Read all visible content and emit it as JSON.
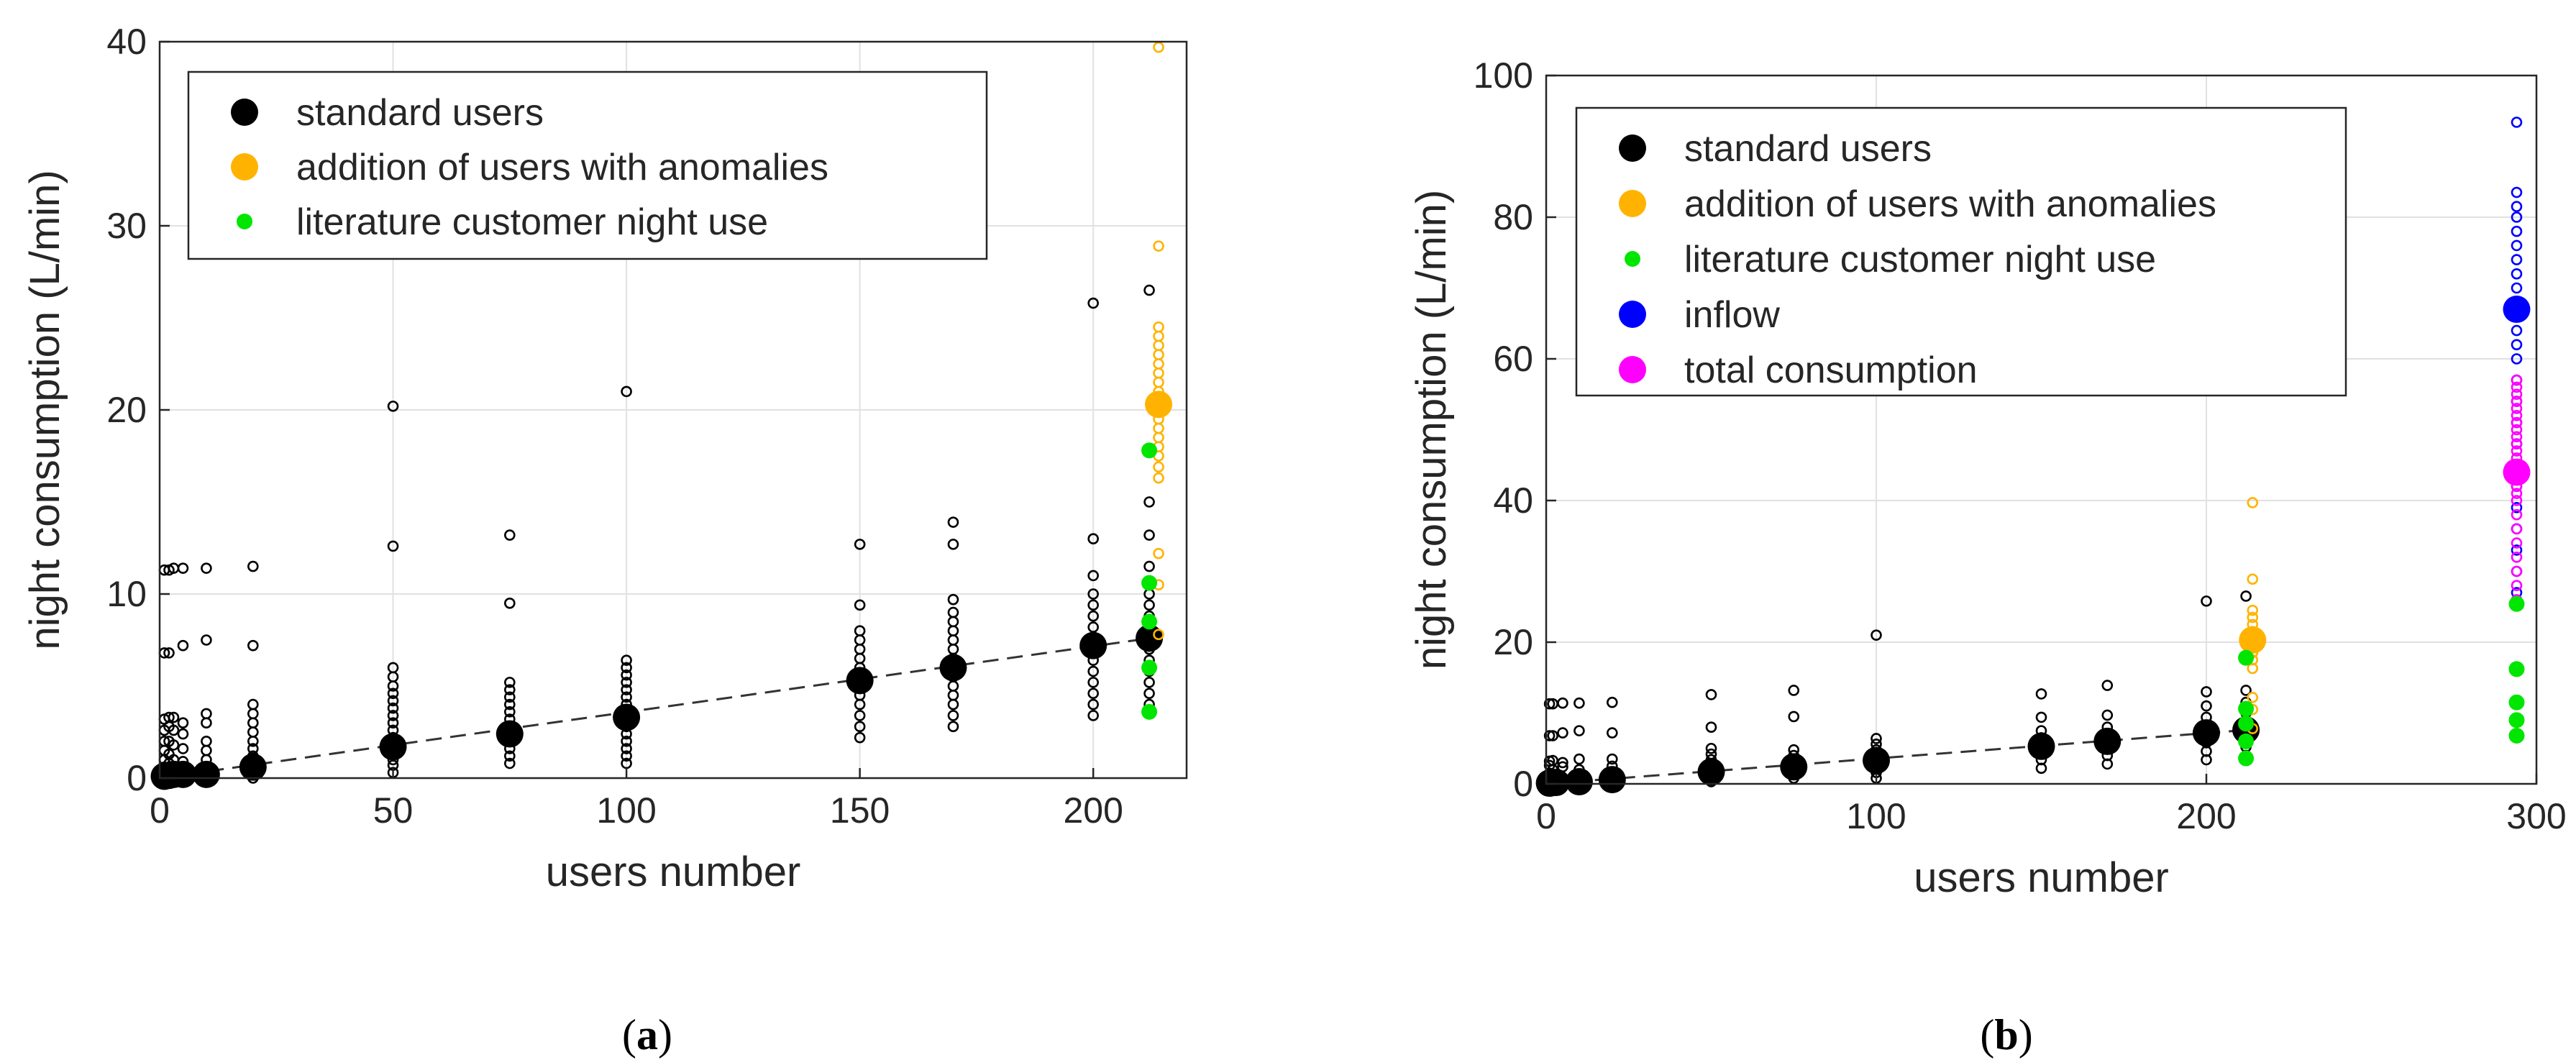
{
  "chart_data": [
    {
      "type": "scatter",
      "panel_label": "a",
      "xlabel": "users number",
      "ylabel": "night consumption (L/min)",
      "xlim": [
        0,
        220
      ],
      "ylim": [
        0,
        40
      ],
      "xticks": [
        0,
        50,
        100,
        150,
        200
      ],
      "yticks": [
        0,
        10,
        20,
        30,
        40
      ],
      "grid": true,
      "legend_position": "top-left",
      "legend": [
        {
          "label": "standard users",
          "color": "#000000",
          "marker": "large-dot"
        },
        {
          "label": "addition of users with anomalies",
          "color": "#FFB300",
          "marker": "large-dot"
        },
        {
          "label": "literature customer night use",
          "color": "#00E600",
          "marker": "small-dot"
        }
      ],
      "trend_line": {
        "style": "dashed",
        "from": [
          0,
          0
        ],
        "to": [
          215,
          7.7
        ]
      },
      "series": [
        {
          "name": "standard users (individual)",
          "marker": "open-circle",
          "color": "#000000",
          "groups": [
            {
              "x": 1,
              "y": [
                0,
                0.3,
                0.6,
                1,
                1.5,
                2,
                2.6,
                3.2,
                6.8,
                11.3
              ]
            },
            {
              "x": 2,
              "y": [
                0,
                0.4,
                0.8,
                1.3,
                2,
                2.8,
                3.3,
                6.8,
                11.3
              ]
            },
            {
              "x": 3,
              "y": [
                0,
                0.5,
                1,
                1.8,
                2.6,
                3.3,
                11.4
              ]
            },
            {
              "x": 5,
              "y": [
                0,
                0.4,
                0.9,
                1.6,
                2.4,
                3,
                7.2,
                11.4
              ]
            },
            {
              "x": 10,
              "y": [
                0,
                0.5,
                1,
                1.5,
                2,
                3,
                3.5,
                7.5,
                11.4
              ]
            },
            {
              "x": 20,
              "y": [
                0,
                0.4,
                0.8,
                1.2,
                1.6,
                2,
                2.5,
                3,
                3.5,
                4,
                7.2,
                11.5
              ]
            },
            {
              "x": 50,
              "y": [
                0.3,
                0.7,
                1,
                1.4,
                1.8,
                2.2,
                2.6,
                3,
                3.4,
                3.8,
                4.2,
                4.6,
                5,
                5.5,
                6,
                12.6,
                20.2
              ]
            },
            {
              "x": 75,
              "y": [
                0.8,
                1.2,
                1.6,
                2,
                2.4,
                2.8,
                3.2,
                3.6,
                4,
                4.4,
                4.8,
                5.2,
                9.5,
                13.2
              ]
            },
            {
              "x": 100,
              "y": [
                0.8,
                1.2,
                1.6,
                2,
                2.4,
                2.8,
                3.2,
                3.6,
                4,
                4.4,
                4.8,
                5.2,
                5.6,
                6,
                6.4,
                21
              ]
            },
            {
              "x": 150,
              "y": [
                2.2,
                2.8,
                3.4,
                4,
                4.5,
                5,
                5.5,
                6,
                6.5,
                7,
                7.5,
                8,
                9.4,
                12.7
              ]
            },
            {
              "x": 170,
              "y": [
                2.8,
                3.4,
                4,
                4.5,
                5,
                5.5,
                6,
                6.5,
                7,
                7.5,
                8,
                8.5,
                9,
                9.7,
                12.7,
                13.9
              ]
            },
            {
              "x": 200,
              "y": [
                3.4,
                4,
                4.6,
                5.2,
                5.8,
                6.4,
                7,
                7.6,
                8.2,
                8.8,
                9.4,
                10,
                11,
                13,
                25.8
              ]
            },
            {
              "x": 212,
              "y": [
                4,
                4.6,
                5.2,
                5.8,
                6.4,
                7,
                7.6,
                8.2,
                8.8,
                9.4,
                10,
                10.6,
                11.5,
                13.2,
                15,
                26.5
              ]
            }
          ]
        },
        {
          "name": "standard users (mean)",
          "marker": "large-dot",
          "color": "#000000",
          "points": [
            [
              1,
              0.1
            ],
            [
              2,
              0.15
            ],
            [
              3,
              0.2
            ],
            [
              5,
              0.2
            ],
            [
              10,
              0.2
            ],
            [
              20,
              0.6
            ],
            [
              50,
              1.7
            ],
            [
              75,
              2.4
            ],
            [
              100,
              3.3
            ],
            [
              150,
              5.3
            ],
            [
              170,
              6
            ],
            [
              200,
              7.2
            ],
            [
              212,
              7.6
            ]
          ]
        },
        {
          "name": "addition of users with anomalies (individual)",
          "marker": "open-circle",
          "color": "#FFB300",
          "groups": [
            {
              "x": 214,
              "y": [
                7.8,
                10.5,
                12.2,
                16.3,
                16.9,
                17.5,
                18,
                18.5,
                19,
                19.5,
                20,
                20.5,
                21,
                21.5,
                22,
                22.5,
                23,
                23.5,
                24,
                24.5,
                28.9,
                39.7
              ]
            }
          ]
        },
        {
          "name": "addition of users with anomalies (mean)",
          "marker": "large-dot",
          "color": "#FFB300",
          "points": [
            [
              214,
              20.3
            ]
          ]
        },
        {
          "name": "literature customer night use",
          "marker": "small-dot",
          "color": "#00E600",
          "points": [
            [
              212,
              3.6
            ],
            [
              212,
              6
            ],
            [
              212,
              8.5
            ],
            [
              212,
              10.6
            ],
            [
              212,
              17.8
            ]
          ]
        }
      ]
    },
    {
      "type": "scatter",
      "panel_label": "b",
      "xlabel": "users number",
      "ylabel": "night consumption (L/min)",
      "xlim": [
        0,
        300
      ],
      "ylim": [
        0,
        100
      ],
      "xticks": [
        0,
        100,
        200,
        300
      ],
      "yticks": [
        0,
        20,
        40,
        60,
        80,
        100
      ],
      "grid": true,
      "legend_position": "top-left",
      "legend": [
        {
          "label": "standard users",
          "color": "#000000",
          "marker": "large-dot"
        },
        {
          "label": "addition of users with anomalies",
          "color": "#FFB300",
          "marker": "large-dot"
        },
        {
          "label": "literature customer night use",
          "color": "#00E600",
          "marker": "small-dot"
        },
        {
          "label": "inflow",
          "color": "#0000FF",
          "marker": "large-dot"
        },
        {
          "label": "total consumption",
          "color": "#FF00FF",
          "marker": "large-dot"
        }
      ],
      "trend_line": {
        "style": "dashed",
        "from": [
          0,
          0
        ],
        "to": [
          215,
          7.7
        ]
      },
      "series": [
        {
          "name": "standard users (individual)",
          "marker": "open-circle",
          "color": "#000000",
          "groups": [
            {
              "x": 1,
              "y": [
                0,
                0.6,
                1.5,
                2.6,
                3.2,
                6.8,
                11.3
              ]
            },
            {
              "x": 2,
              "y": [
                0,
                0.8,
                2,
                3.3,
                6.8,
                11.3
              ]
            },
            {
              "x": 5,
              "y": [
                0,
                0.9,
                2.4,
                3,
                7.2,
                11.4
              ]
            },
            {
              "x": 10,
              "y": [
                0,
                1,
                2,
                3.5,
                7.5,
                11.4
              ]
            },
            {
              "x": 20,
              "y": [
                0,
                0.8,
                1.6,
                2.5,
                3.5,
                7.2,
                11.5
              ]
            },
            {
              "x": 50,
              "y": [
                0.3,
                1,
                1.8,
                2.6,
                3.4,
                4.2,
                5,
                8,
                12.6
              ]
            },
            {
              "x": 75,
              "y": [
                0.8,
                1.6,
                2.4,
                3.2,
                4,
                4.8,
                9.5,
                13.2
              ]
            },
            {
              "x": 100,
              "y": [
                0.8,
                1.6,
                2.4,
                3.2,
                4,
                4.8,
                5.6,
                6.4,
                21
              ]
            },
            {
              "x": 150,
              "y": [
                2.2,
                3.4,
                4.5,
                5.5,
                6.5,
                7.5,
                9.4,
                12.7
              ]
            },
            {
              "x": 170,
              "y": [
                2.8,
                4,
                5,
                6,
                7,
                8,
                9.7,
                13.9
              ]
            },
            {
              "x": 200,
              "y": [
                3.4,
                4.6,
                5.8,
                7,
                8.2,
                9.4,
                11,
                13,
                25.8
              ]
            },
            {
              "x": 212,
              "y": [
                4,
                5.2,
                6.4,
                7.6,
                8.8,
                10,
                11.5,
                13.2,
                26.5
              ]
            }
          ]
        },
        {
          "name": "standard users (mean)",
          "marker": "large-dot",
          "color": "#000000",
          "points": [
            [
              1,
              0.1
            ],
            [
              3,
              0.2
            ],
            [
              10,
              0.3
            ],
            [
              20,
              0.6
            ],
            [
              50,
              1.7
            ],
            [
              75,
              2.4
            ],
            [
              100,
              3.3
            ],
            [
              150,
              5.3
            ],
            [
              170,
              6
            ],
            [
              200,
              7.2
            ],
            [
              212,
              7.6
            ]
          ]
        },
        {
          "name": "addition of users with anomalies (individual)",
          "marker": "open-circle",
          "color": "#FFB300",
          "groups": [
            {
              "x": 214,
              "y": [
                7.8,
                10.5,
                12.2,
                16.3,
                17.5,
                18.5,
                19.5,
                20.5,
                21.5,
                22.5,
                23.5,
                24.5,
                28.9,
                39.7
              ]
            }
          ]
        },
        {
          "name": "addition of users with anomalies (mean)",
          "marker": "large-dot",
          "color": "#FFB300",
          "points": [
            [
              214,
              20.3
            ]
          ]
        },
        {
          "name": "literature customer night use (212)",
          "marker": "small-dot",
          "color": "#00E600",
          "points": [
            [
              212,
              3.6
            ],
            [
              212,
              6
            ],
            [
              212,
              8.5
            ],
            [
              212,
              10.6
            ],
            [
              212,
              17.8
            ]
          ]
        },
        {
          "name": "inflow (individual)",
          "marker": "open-circle",
          "color": "#0000FF",
          "groups": [
            {
              "x": 294,
              "y": [
                27,
                30,
                33,
                36,
                39,
                42,
                45,
                48,
                51,
                54,
                57,
                60,
                62,
                64,
                66,
                68,
                70,
                72,
                74,
                76,
                78,
                80,
                81.5,
                83.5,
                93.4
              ]
            }
          ]
        },
        {
          "name": "inflow (mean)",
          "marker": "large-dot",
          "color": "#0000FF",
          "points": [
            [
              294,
              67
            ]
          ]
        },
        {
          "name": "total consumption (individual)",
          "marker": "open-circle",
          "color": "#FF00FF",
          "groups": [
            {
              "x": 294,
              "y": [
                26,
                28,
                30,
                32,
                34,
                36,
                38,
                40,
                41,
                42,
                43,
                44,
                45,
                46,
                47,
                48,
                49,
                50,
                51,
                52,
                53,
                54,
                55,
                56,
                57
              ]
            }
          ]
        },
        {
          "name": "total consumption (mean)",
          "marker": "large-dot",
          "color": "#FF00FF",
          "points": [
            [
              294,
              44
            ]
          ]
        },
        {
          "name": "literature customer night use (294)",
          "marker": "small-dot",
          "color": "#00E600",
          "points": [
            [
              294,
              6.8
            ],
            [
              294,
              9
            ],
            [
              294,
              11.5
            ],
            [
              294,
              16.2
            ],
            [
              294,
              25.4
            ]
          ]
        }
      ]
    }
  ]
}
